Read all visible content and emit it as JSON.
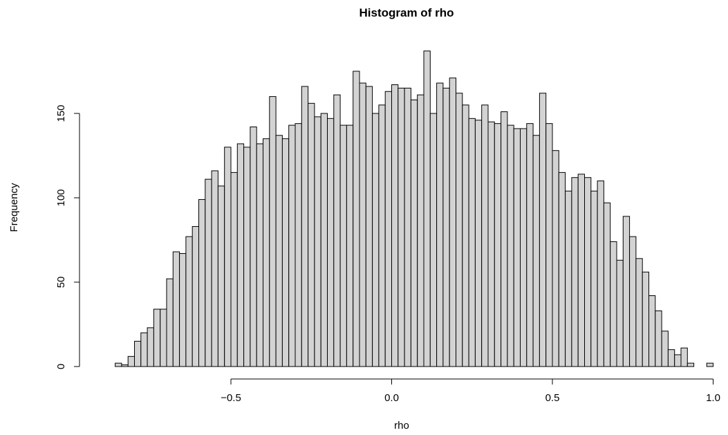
{
  "chart_data": {
    "type": "bar",
    "title": "Histogram of rho",
    "xlabel": "rho",
    "ylabel": "Frequency",
    "bin_width": 0.02,
    "bin_start": -0.86,
    "bin_end": 1.0,
    "values": [
      2,
      1,
      6,
      15,
      20,
      23,
      34,
      34,
      52,
      68,
      67,
      77,
      83,
      99,
      111,
      116,
      107,
      130,
      115,
      132,
      130,
      142,
      132,
      135,
      160,
      137,
      135,
      143,
      144,
      166,
      156,
      148,
      150,
      147,
      161,
      143,
      143,
      175,
      168,
      166,
      150,
      155,
      163,
      167,
      165,
      165,
      158,
      161,
      187,
      150,
      168,
      165,
      171,
      162,
      155,
      147,
      146,
      155,
      145,
      144,
      151,
      143,
      141,
      141,
      144,
      137,
      162,
      144,
      128,
      115,
      104,
      112,
      114,
      112,
      104,
      110,
      97,
      74,
      63,
      89,
      77,
      64,
      56,
      42,
      33,
      21,
      10,
      7,
      11,
      2,
      0,
      0,
      2
    ],
    "xlim": [
      -0.86,
      1.0
    ],
    "ylim": [
      0,
      187
    ],
    "x_ticks": [
      -0.5,
      0.0,
      0.5,
      1.0
    ],
    "x_tick_labels": [
      "−0.5",
      "0.0",
      "0.5",
      "1.0"
    ],
    "y_ticks": [
      0,
      50,
      100,
      150
    ],
    "y_tick_labels": [
      "0",
      "50",
      "100",
      "150"
    ],
    "bar_fill": "#d3d3d3",
    "bar_stroke": "#000000",
    "grid": false
  }
}
